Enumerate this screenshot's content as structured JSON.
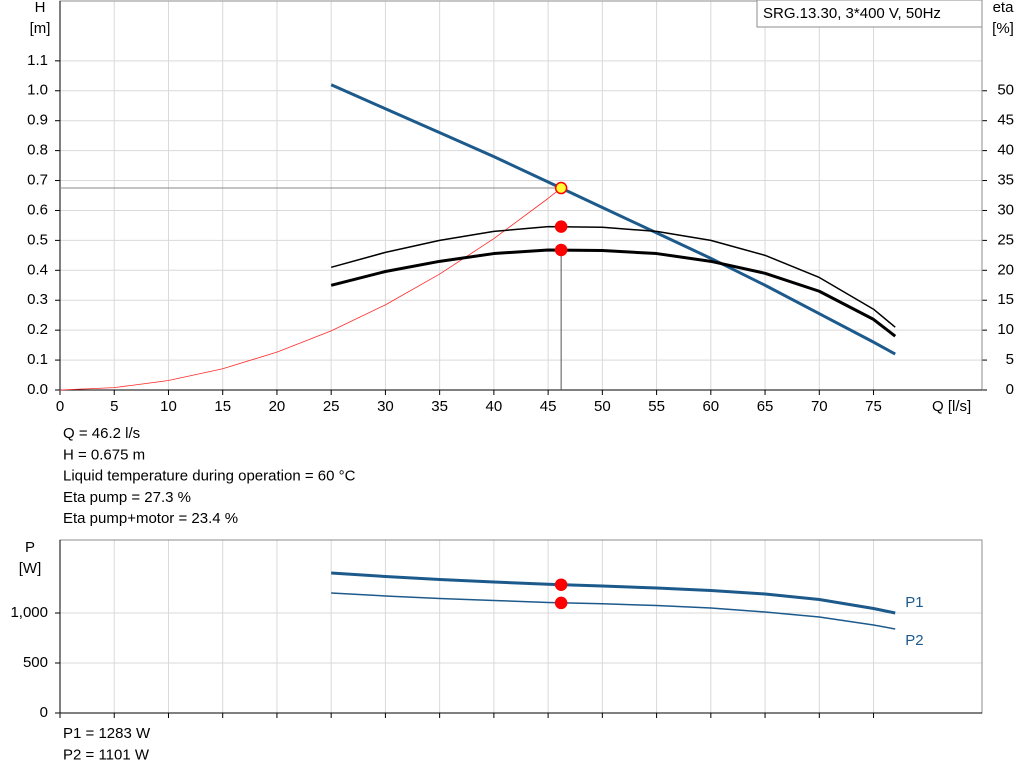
{
  "chart_data": [
    {
      "type": "line",
      "box_title": "SRG.13.30, 3*400 V, 50Hz",
      "y_label": [
        "H",
        "[m]"
      ],
      "y2_label": [
        "eta",
        "[%]"
      ],
      "x_label": "Q [l/s]",
      "xlim": [
        0,
        85
      ],
      "ylim": [
        0,
        1.3
      ],
      "y2lim": [
        0,
        65
      ],
      "xticks": [
        0,
        5,
        10,
        15,
        20,
        25,
        30,
        35,
        40,
        45,
        50,
        55,
        60,
        65,
        70,
        75
      ],
      "yticks": [
        {
          "value": 0,
          "label": "0.0"
        },
        0.1,
        0.2,
        0.3,
        0.4,
        0.5,
        0.6,
        0.7,
        0.8,
        0.9,
        {
          "value": 1,
          "label": "1.0"
        },
        1.1
      ],
      "y2ticks": [
        0,
        5,
        10,
        15,
        20,
        25,
        30,
        35,
        40,
        45,
        50
      ],
      "grid": true,
      "duty_x": 46.2,
      "series": [
        {
          "color": "#ff2a2a",
          "line_width": 0.8,
          "x": [
            0,
            5,
            10,
            15,
            20,
            25,
            30,
            35,
            40,
            45,
            46.2
          ],
          "values": [
            0,
            0.0079,
            0.0316,
            0.0711,
            0.1265,
            0.1977,
            0.2846,
            0.3874,
            0.506,
            0.6404,
            0.675
          ]
        },
        {
          "color": "#1d5a8c",
          "line_width": 3,
          "duty_value": 0.675,
          "duty_fill": "#ffff33",
          "duty_stroke": "#ff0000",
          "x": [
            25,
            30,
            35,
            40,
            45,
            50,
            55,
            60,
            65,
            70,
            75,
            77
          ],
          "values": [
            1.02,
            0.94,
            0.86,
            0.78,
            0.695,
            0.61,
            0.525,
            0.44,
            0.35,
            0.255,
            0.16,
            0.12
          ]
        },
        {
          "color": "#000000",
          "line_width": 1.5,
          "axis": "y2",
          "duty_value": 27.3,
          "duty_fill": "#ff0000",
          "duty_stroke": "#ff0000",
          "x": [
            25,
            30,
            35,
            40,
            45,
            50,
            55,
            60,
            65,
            70,
            75,
            77
          ],
          "values": [
            20.5,
            23.0,
            25.0,
            26.5,
            27.3,
            27.2,
            26.5,
            25.0,
            22.5,
            18.8,
            13.5,
            10.5
          ]
        },
        {
          "color": "#000000",
          "line_width": 3,
          "axis": "y2",
          "duty_value": 23.4,
          "duty_fill": "#ff0000",
          "duty_stroke": "#ff0000",
          "x": [
            25,
            30,
            35,
            40,
            45,
            50,
            55,
            60,
            65,
            70,
            75,
            77
          ],
          "values": [
            17.5,
            19.8,
            21.5,
            22.8,
            23.4,
            23.3,
            22.8,
            21.5,
            19.5,
            16.5,
            11.8,
            9.0
          ]
        }
      ],
      "annotations": [
        "Q = 46.2 l/s",
        "H = 0.675 m",
        "Liquid temperature during operation = 60 °C",
        "Eta pump = 27.3 %",
        "Eta pump+motor = 23.4 %"
      ]
    },
    {
      "type": "line",
      "y_label": [
        "P",
        "[W]"
      ],
      "xlim": [
        0,
        85
      ],
      "ylim": [
        0,
        1730
      ],
      "xticks": [
        0,
        5,
        10,
        15,
        20,
        25,
        30,
        35,
        40,
        45,
        50,
        55,
        60,
        65,
        70,
        75
      ],
      "yticks": [
        0,
        500,
        {
          "value": 1000,
          "label": "1,000"
        }
      ],
      "grid": true,
      "duty_x": 46.2,
      "series": [
        {
          "name": "P1",
          "color": "#1d5a8c",
          "line_width": 3,
          "duty_value": 1283,
          "duty_fill": "#ff0000",
          "duty_stroke": "#ff0000",
          "x": [
            25,
            30,
            35,
            40,
            45,
            50,
            55,
            60,
            65,
            70,
            75,
            77
          ],
          "values": [
            1400,
            1365,
            1335,
            1310,
            1288,
            1270,
            1250,
            1225,
            1190,
            1135,
            1045,
            1000
          ]
        },
        {
          "name": "P2",
          "color": "#1d5a8c",
          "line_width": 1.5,
          "duty_value": 1101,
          "duty_fill": "#ff0000",
          "duty_stroke": "#ff0000",
          "x": [
            25,
            30,
            35,
            40,
            45,
            50,
            55,
            60,
            65,
            70,
            75,
            77
          ],
          "values": [
            1200,
            1170,
            1145,
            1125,
            1105,
            1092,
            1075,
            1050,
            1010,
            960,
            880,
            840
          ]
        }
      ],
      "annotations": [
        "P1 = 1283 W",
        "P2 = 1101 W"
      ]
    }
  ]
}
